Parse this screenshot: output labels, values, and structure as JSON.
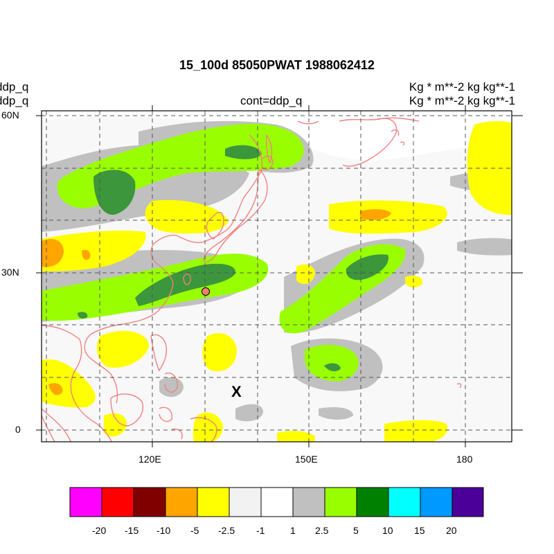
{
  "title": "15_100d 85050PWAT  1988062412",
  "left_labels": [
    "ddp_q",
    "ddp_q"
  ],
  "center_label": "cont=ddp_q",
  "right_labels": [
    "Kg  * m**-2 kg kg**-1",
    "Kg  * m**-2 kg kg**-1"
  ],
  "lat_ticks": [
    {
      "label": "60N",
      "value": 60
    },
    {
      "label": "30N",
      "value": 30
    },
    {
      "label": "0",
      "value": 0
    }
  ],
  "lon_ticks": [
    {
      "label": "120E",
      "value": 120
    },
    {
      "label": "150E",
      "value": 150
    },
    {
      "label": "180",
      "value": 180
    }
  ],
  "marker_label": "X",
  "colors": {
    "coastline": "#f08080",
    "frame": "#000000",
    "marker_fill": "#f08070"
  },
  "colorbar": {
    "colors": [
      "#ff00ff",
      "#ff0000",
      "#800000",
      "#ffa500",
      "#ffff00",
      "#f2f2f2",
      "#ffffff",
      "#c0c0c0",
      "#99ff00",
      "#008000",
      "#00ffff",
      "#0099ff",
      "#4b0099"
    ],
    "labels": [
      "-20",
      "-15",
      "-10",
      "-5",
      "-2.5",
      "-1",
      "1",
      "2.5",
      "5",
      "10",
      "15",
      "20"
    ]
  }
}
